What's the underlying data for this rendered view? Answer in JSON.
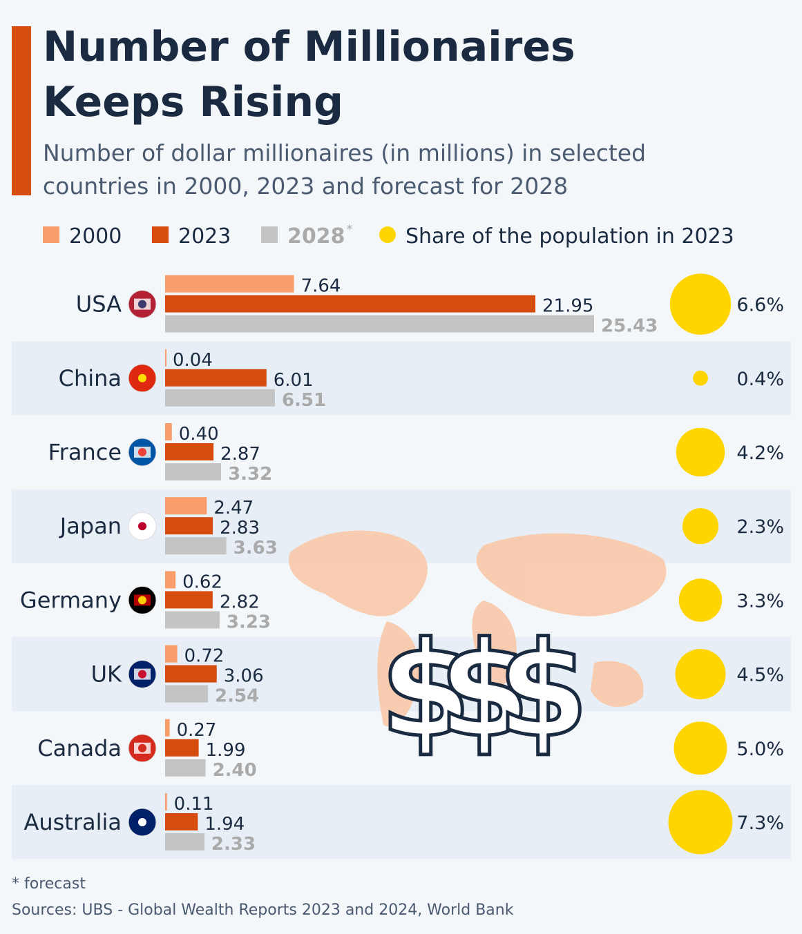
{
  "chart_data": {
    "type": "bar",
    "orientation": "horizontal",
    "title_lines": [
      "Number of Millionaires",
      "Keeps Rising"
    ],
    "subtitle_lines": [
      "Number of dollar millionaires (in millions) in selected",
      "countries in 2000, 2023 and forecast for 2028"
    ],
    "categories": [
      "USA",
      "China",
      "France",
      "Japan",
      "Germany",
      "UK",
      "Canada",
      "Australia"
    ],
    "series": [
      {
        "name": "2000",
        "color": "#f99d6a",
        "values": [
          7.64,
          0.04,
          0.4,
          2.47,
          0.62,
          0.72,
          0.27,
          0.11
        ],
        "value_labels": [
          "7.64",
          "0.04",
          "0.40",
          "2.47",
          "0.62",
          "0.72",
          "0.27",
          "0.11"
        ]
      },
      {
        "name": "2023",
        "color": "#d64b0e",
        "values": [
          21.95,
          6.01,
          2.87,
          2.83,
          2.82,
          3.06,
          1.99,
          1.94
        ],
        "value_labels": [
          "21.95",
          "6.01",
          "2.87",
          "2.83",
          "2.82",
          "3.06",
          "1.99",
          "1.94"
        ]
      },
      {
        "name": "2028",
        "color": "#c4c4c4",
        "values": [
          25.43,
          6.51,
          3.32,
          3.63,
          3.23,
          2.54,
          2.4,
          2.33
        ],
        "value_labels": [
          "25.43",
          "6.51",
          "3.32",
          "3.63",
          "3.23",
          "2.54",
          "2.40",
          "2.33"
        ]
      }
    ],
    "forecast_marker": "*",
    "share": {
      "name": "Share of the population in 2023",
      "color": "#ffd500",
      "values": [
        6.6,
        0.4,
        4.2,
        2.3,
        3.3,
        4.5,
        5.0,
        7.3
      ],
      "value_labels": [
        "6.6%",
        "0.4%",
        "4.2%",
        "2.3%",
        "3.3%",
        "4.5%",
        "5.0%",
        "7.3%"
      ]
    },
    "footnote": "* forecast",
    "source": "Sources: UBS - Global Wealth Reports 2023 and 2024, World Bank"
  }
}
